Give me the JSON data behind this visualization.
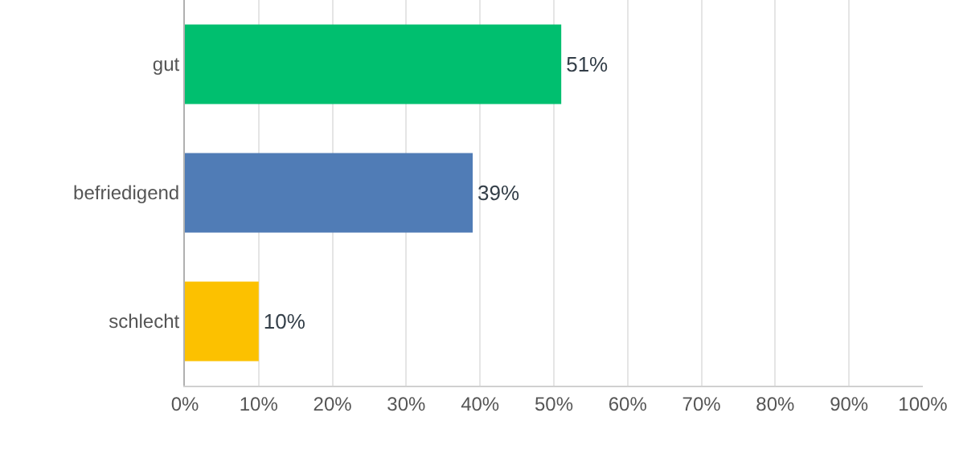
{
  "chart_data": {
    "type": "bar",
    "orientation": "horizontal",
    "categories": [
      "gut",
      "befriedigend",
      "schlecht"
    ],
    "values": [
      51,
      39,
      10
    ],
    "colors": [
      "#00bf6f",
      "#507cb6",
      "#fcc100"
    ],
    "value_labels": [
      "51%",
      "39%",
      "10%"
    ],
    "xlim": [
      0,
      100
    ],
    "xticks": [
      {
        "value": 0,
        "label": "0%"
      },
      {
        "value": 10,
        "label": "10%"
      },
      {
        "value": 20,
        "label": "20%"
      },
      {
        "value": 30,
        "label": "30%"
      },
      {
        "value": 40,
        "label": "40%"
      },
      {
        "value": 50,
        "label": "50%"
      },
      {
        "value": 60,
        "label": "60%"
      },
      {
        "value": 70,
        "label": "70%"
      },
      {
        "value": 80,
        "label": "80%"
      },
      {
        "value": 90,
        "label": "90%"
      },
      {
        "value": 100,
        "label": "100%"
      }
    ],
    "grid": "x"
  }
}
